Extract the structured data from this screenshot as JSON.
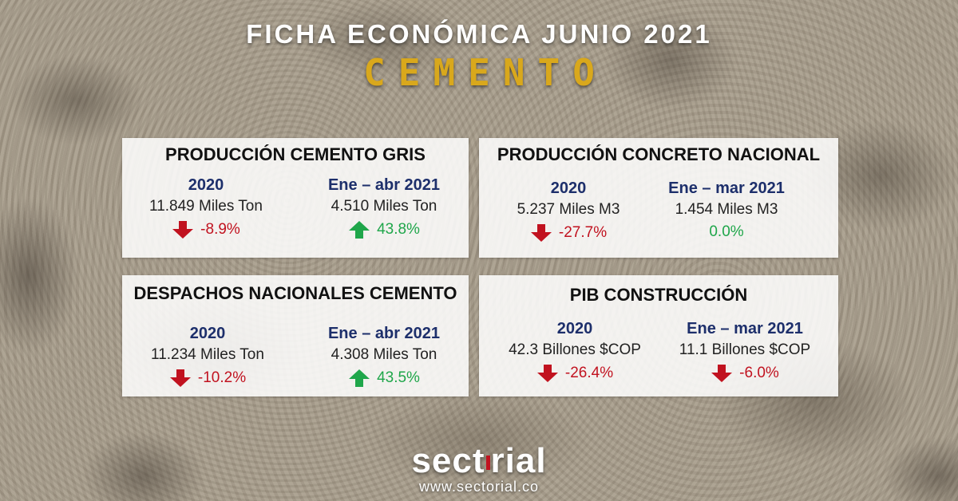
{
  "header": {
    "title_top": "FICHA ECONÓMICA JUNIO 2021",
    "title_main": "CEMENTO"
  },
  "cards": [
    {
      "title": "PRODUCCIÓN CEMENTO GRIS",
      "left": {
        "year": "2020",
        "value": "11.849 Miles Ton",
        "change": "-8.9%",
        "direction": "down"
      },
      "right": {
        "year": "Ene – abr 2021",
        "value": "4.510 Miles Ton",
        "change": "43.8%",
        "direction": "up"
      }
    },
    {
      "title": "PRODUCCIÓN CONCRETO NACIONAL",
      "left": {
        "year": "2020",
        "value": "5.237 Miles M3",
        "change": "-27.7%",
        "direction": "down"
      },
      "right": {
        "year": "Ene – mar 2021",
        "value": "1.454 Miles M3",
        "change": "0.0%",
        "direction": "none"
      }
    },
    {
      "title": "DESPACHOS NACIONALES CEMENTO",
      "left": {
        "year": "2020",
        "value": "11.234 Miles Ton",
        "change": "-10.2%",
        "direction": "down"
      },
      "right": {
        "year": "Ene – abr 2021",
        "value": "4.308 Miles Ton",
        "change": "43.5%",
        "direction": "up"
      }
    },
    {
      "title": "PIB CONSTRUCCIÓN",
      "left": {
        "year": "2020",
        "value": "42.3 Billones $COP",
        "change": "-26.4%",
        "direction": "down"
      },
      "right": {
        "year": "Ene – mar 2021",
        "value": "11.1 Billones $COP",
        "change": "-6.0%",
        "direction": "down"
      }
    }
  ],
  "footer": {
    "logo_part1": "sect",
    "logo_part2": "rial",
    "website": "www.sectorial.co"
  },
  "colors": {
    "accent_gold": "#d9a81c",
    "year_blue": "#1d2f6b",
    "negative_red": "#c1121f",
    "positive_green": "#1fa64a"
  },
  "icons": {
    "down": "arrow-down-icon",
    "up": "arrow-up-icon"
  }
}
